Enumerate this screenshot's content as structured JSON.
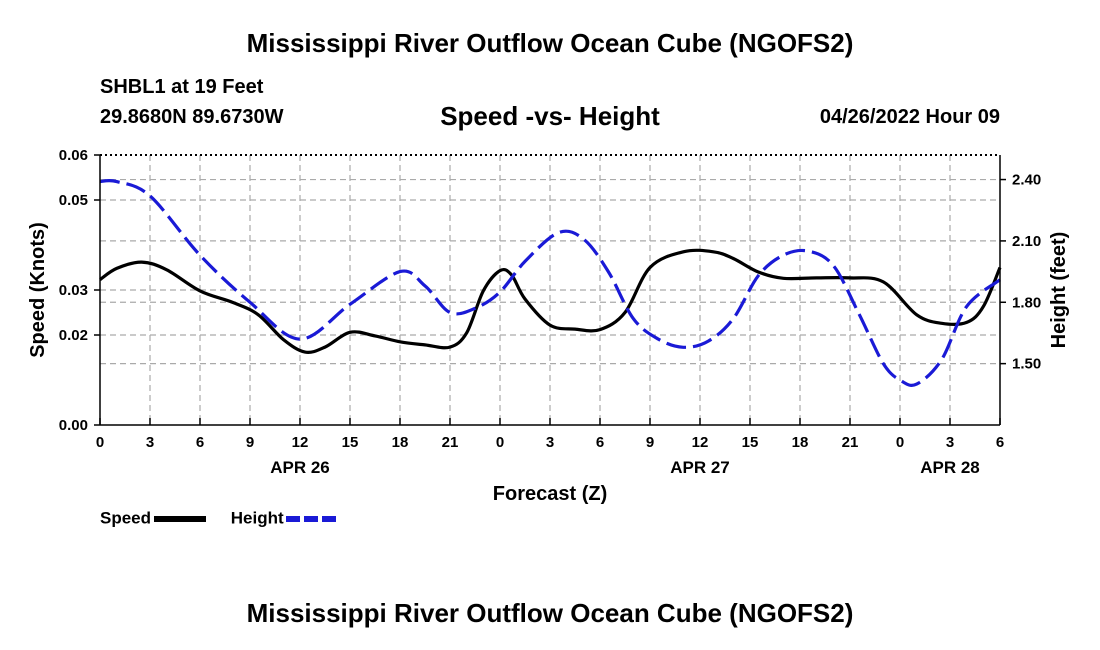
{
  "title": "Mississippi River Outflow Ocean Cube (NGOFS2)",
  "station_label": "SHBL1 at 19 Feet",
  "coords_label": "29.8680N  89.6730W",
  "subtitle": "Speed -vs- Height",
  "datetime_label": "04/26/2022 Hour 09",
  "legend": {
    "speed_label": "Speed",
    "height_label": "Height"
  },
  "colors": {
    "speed": "#000000",
    "height": "#1a1ad6",
    "grid": "#aaaaaa"
  },
  "bottom_title": "Mississippi River Outflow Ocean Cube (NGOFS2)",
  "chart_data": {
    "type": "line",
    "title": "Speed -vs- Height",
    "xlabel": "Forecast (Z)",
    "ylabel": "Speed (Knots)",
    "y2label": "Height (feet)",
    "xlim": [
      0,
      54
    ],
    "ylim": [
      0,
      0.06
    ],
    "y2lim": [
      1.2,
      2.52
    ],
    "x_ticks": [
      0,
      3,
      6,
      9,
      12,
      15,
      18,
      21,
      24,
      27,
      30,
      33,
      36,
      39,
      42,
      45,
      48,
      51,
      54
    ],
    "x_tick_labels": [
      "0",
      "3",
      "6",
      "9",
      "12",
      "15",
      "18",
      "21",
      "0",
      "3",
      "6",
      "9",
      "12",
      "15",
      "18",
      "21",
      "0",
      "3",
      "6"
    ],
    "y_ticks": [
      0,
      0.02,
      0.03,
      0.05,
      0.06
    ],
    "y_tick_labels": [
      "0.00",
      "0.02",
      "0.03",
      "0.05",
      "0.06"
    ],
    "y2_ticks": [
      1.5,
      1.8,
      2.1,
      2.4
    ],
    "y2_tick_labels": [
      "1.50",
      "1.80",
      "2.10",
      "2.40"
    ],
    "date_labels": [
      {
        "x": 12,
        "label": "APR 26"
      },
      {
        "x": 36,
        "label": "APR 27"
      },
      {
        "x": 51,
        "label": "APR 28"
      }
    ],
    "grid": true,
    "legend_position": "bottom-left",
    "series": [
      {
        "name": "Speed",
        "axis": "left",
        "style": "solid",
        "x": [
          0,
          1,
          2.5,
          4,
          6,
          8,
          9.5,
          11,
          12.3,
          13.5,
          15,
          16.5,
          18,
          19.5,
          21,
          22,
          23,
          24,
          24.7,
          25.5,
          27,
          28.5,
          30,
          31.5,
          33,
          35,
          36.8,
          38,
          39.5,
          41,
          43,
          45,
          47,
          49,
          50.5,
          52,
          53,
          54
        ],
        "y": [
          0.0323,
          0.0348,
          0.0362,
          0.0345,
          0.0298,
          0.0272,
          0.0245,
          0.019,
          0.0162,
          0.0173,
          0.0206,
          0.0198,
          0.0185,
          0.0178,
          0.0173,
          0.0205,
          0.0298,
          0.0343,
          0.0333,
          0.028,
          0.0222,
          0.0213,
          0.0212,
          0.025,
          0.035,
          0.0385,
          0.0385,
          0.037,
          0.034,
          0.0326,
          0.0327,
          0.0327,
          0.0318,
          0.0245,
          0.0226,
          0.0228,
          0.0263,
          0.035
        ]
      },
      {
        "name": "Height",
        "axis": "right",
        "style": "dashed",
        "x": [
          0,
          1,
          3,
          6,
          9,
          12,
          15,
          18,
          19.5,
          21,
          22.5,
          24,
          25.5,
          27.5,
          29,
          30.5,
          32,
          33.5,
          35,
          36.5,
          38,
          39.5,
          41,
          42.5,
          44,
          45.5,
          47,
          48,
          49,
          50.5,
          52,
          54
        ],
        "y": [
          2.39,
          2.39,
          2.32,
          2.03,
          1.8,
          1.62,
          1.79,
          1.95,
          1.88,
          1.75,
          1.77,
          1.85,
          2.0,
          2.14,
          2.11,
          1.95,
          1.72,
          1.62,
          1.58,
          1.61,
          1.72,
          1.93,
          2.03,
          2.05,
          1.98,
          1.75,
          1.5,
          1.42,
          1.4,
          1.52,
          1.78,
          1.91
        ]
      }
    ]
  }
}
